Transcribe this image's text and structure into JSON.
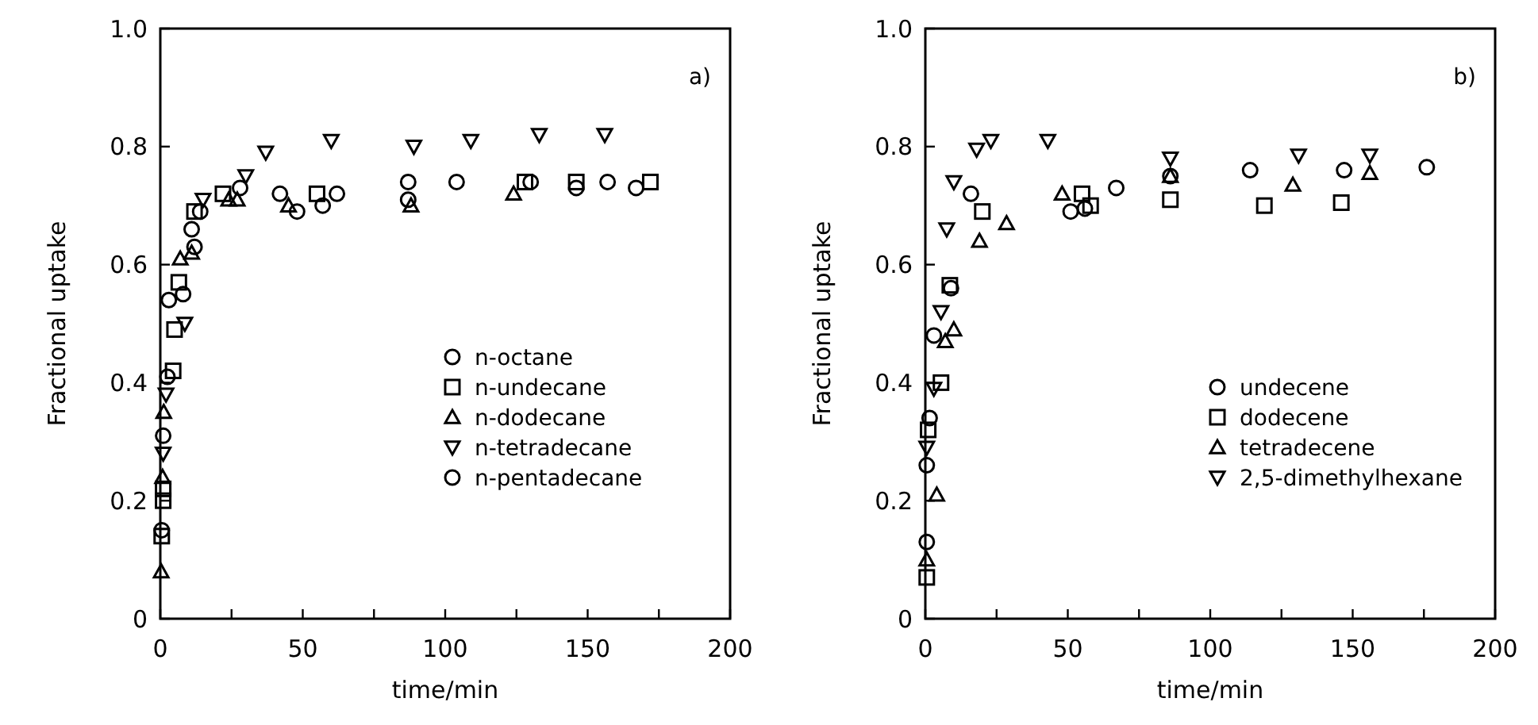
{
  "chart_data": [
    {
      "type": "scatter",
      "xlabel": "time/min",
      "ylabel": "Fractional uptake",
      "annotations": [
        "a)"
      ],
      "xlim": [
        0,
        200
      ],
      "ylim": [
        0,
        1
      ],
      "xticks": [
        0,
        {
          "value": 25,
          "label": null
        },
        50,
        {
          "value": 75,
          "label": null
        },
        100,
        {
          "value": 125,
          "label": null
        },
        150,
        {
          "value": 175,
          "label": null
        },
        200
      ],
      "yticks": [
        0,
        0.2,
        0.4,
        0.6,
        0.8,
        {
          "value": 1,
          "label": "1.0"
        }
      ],
      "grid": false,
      "legend": "bottom right",
      "series": [
        {
          "name": "n-octane",
          "color": "#000000",
          "marker": "circle",
          "x": [
            0.5,
            1,
            2.5,
            3,
            8,
            11,
            14,
            28,
            48,
            62,
            87,
            104,
            130,
            157
          ],
          "values": [
            0.15,
            0.31,
            0.41,
            0.54,
            0.55,
            0.66,
            0.69,
            0.73,
            0.69,
            0.72,
            0.74,
            0.74,
            0.74,
            0.74
          ]
        },
        {
          "name": "n-undecane",
          "color": "#000000",
          "marker": "square",
          "x": [
            0.5,
            1,
            1,
            4.5,
            5,
            6.5,
            12,
            22,
            55,
            128,
            146,
            172
          ],
          "values": [
            0.14,
            0.2,
            0.22,
            0.42,
            0.49,
            0.57,
            0.69,
            0.72,
            0.72,
            0.74,
            0.74,
            0.74
          ]
        },
        {
          "name": "n-dodecane",
          "color": "#000000",
          "marker": "triangle",
          "x": [
            0.3,
            0.8,
            1.2,
            7,
            11,
            24,
            27,
            45,
            88,
            124
          ],
          "values": [
            0.08,
            0.24,
            0.35,
            0.61,
            0.62,
            0.71,
            0.71,
            0.7,
            0.7,
            0.72
          ]
        },
        {
          "name": "n-tetradecane",
          "color": "#000000",
          "marker": "triangle-down",
          "x": [
            1,
            2,
            8.6,
            15,
            30,
            37,
            60,
            89,
            109,
            133,
            156
          ],
          "values": [
            0.28,
            0.38,
            0.5,
            0.71,
            0.75,
            0.79,
            0.81,
            0.8,
            0.81,
            0.82,
            0.82
          ]
        },
        {
          "name": "n-pentadecane",
          "color": "#000000",
          "marker": "circle",
          "x": [
            12,
            42,
            57,
            87,
            146,
            167
          ],
          "values": [
            0.63,
            0.72,
            0.7,
            0.71,
            0.73,
            0.73
          ]
        }
      ]
    },
    {
      "type": "scatter",
      "xlabel": "time/min",
      "ylabel": "Fractional uptake",
      "annotations": [
        "b)"
      ],
      "xlim": [
        0,
        200
      ],
      "ylim": [
        0,
        1
      ],
      "xticks": [
        0,
        {
          "value": 25,
          "label": null
        },
        50,
        {
          "value": 75,
          "label": null
        },
        100,
        {
          "value": 125,
          "label": null
        },
        150,
        {
          "value": 175,
          "label": null
        },
        200
      ],
      "yticks": [
        0,
        0.2,
        0.4,
        0.6,
        0.8,
        {
          "value": 1,
          "label": "1.0"
        }
      ],
      "grid": false,
      "legend": "bottom right",
      "series": [
        {
          "name": "undecene",
          "color": "#000000",
          "marker": "circle",
          "x": [
            0.5,
            0.5,
            1.5,
            3,
            9,
            16,
            51,
            56,
            67,
            86,
            114,
            147,
            176
          ],
          "values": [
            0.13,
            0.26,
            0.34,
            0.48,
            0.56,
            0.72,
            0.69,
            0.695,
            0.73,
            0.75,
            0.76,
            0.76,
            0.765
          ]
        },
        {
          "name": "dodecene",
          "color": "#000000",
          "marker": "square",
          "x": [
            0.5,
            1,
            5.5,
            8.6,
            20,
            55,
            58,
            86,
            119,
            146
          ],
          "values": [
            0.07,
            0.32,
            0.4,
            0.565,
            0.69,
            0.72,
            0.7,
            0.71,
            0.7,
            0.705
          ]
        },
        {
          "name": "tetradecene",
          "color": "#000000",
          "marker": "triangle",
          "x": [
            0.5,
            4,
            7,
            10,
            19,
            28.5,
            48,
            86,
            129,
            156
          ],
          "values": [
            0.1,
            0.21,
            0.47,
            0.49,
            0.64,
            0.67,
            0.72,
            0.75,
            0.735,
            0.755
          ]
        },
        {
          "name": "2,5-dimethylhexane",
          "color": "#000000",
          "marker": "triangle-down",
          "x": [
            0.5,
            3,
            5.5,
            7.5,
            10,
            18,
            23,
            43,
            86,
            131,
            156
          ],
          "values": [
            0.29,
            0.39,
            0.52,
            0.66,
            0.74,
            0.795,
            0.81,
            0.81,
            0.78,
            0.785,
            0.785
          ]
        }
      ]
    }
  ]
}
